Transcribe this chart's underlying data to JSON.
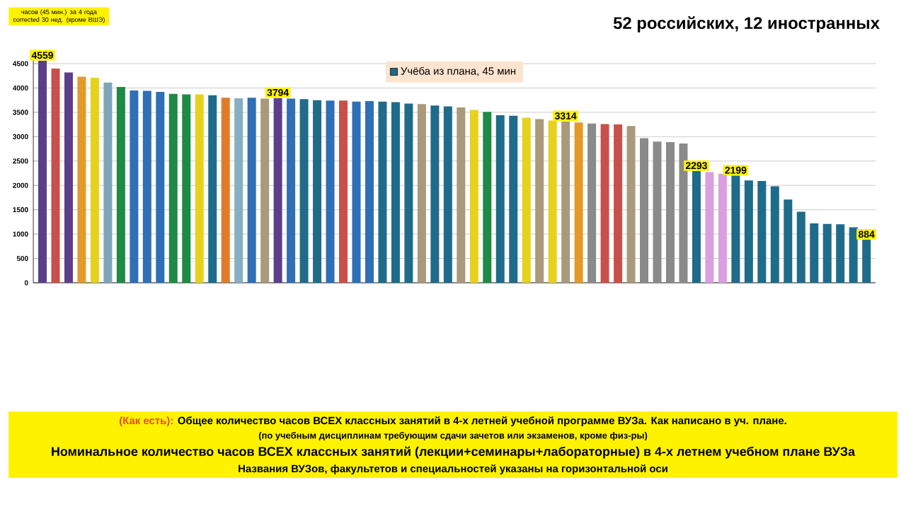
{
  "chart_data": {
    "type": "bar",
    "title": "52 российских, 12 иностранных",
    "categories": [
      null,
      null,
      null,
      null,
      null,
      null,
      null,
      null,
      null,
      null,
      null,
      null,
      null,
      null,
      null,
      null,
      null,
      null,
      null,
      null,
      null,
      null,
      null,
      null,
      null,
      null,
      null,
      null,
      null,
      null,
      null,
      null,
      null,
      null,
      null,
      null,
      null,
      null,
      null,
      null,
      null,
      null,
      null,
      null,
      null,
      null,
      null,
      null,
      null,
      null,
      null,
      null,
      null,
      null,
      null,
      null,
      null,
      null,
      null,
      null,
      null,
      null,
      null,
      null
    ],
    "series": [
      {
        "name": "Учёба из плана, 45 мин",
        "color": "#1f6b8a",
        "values": [
          4559,
          4400,
          4320,
          4230,
          4210,
          4110,
          4020,
          3950,
          3940,
          3920,
          3880,
          3870,
          3870,
          3850,
          3800,
          3790,
          3800,
          3780,
          3794,
          3780,
          3770,
          3750,
          3740,
          3740,
          3720,
          3730,
          3720,
          3710,
          3680,
          3670,
          3640,
          3620,
          3600,
          3550,
          3510,
          3440,
          3430,
          3390,
          3360,
          3330,
          3314,
          3290,
          3270,
          3260,
          3250,
          3220,
          2970,
          2900,
          2890,
          2860,
          2293,
          2270,
          2240,
          2199,
          2100,
          2090,
          1980,
          1710,
          1460,
          1220,
          1210,
          1200,
          1140,
          884
        ],
        "colors": [
          "#5b3f8a",
          "#c9504a",
          "#5b3f8a",
          "#e39a2a",
          "#e6d21c",
          "#7fa6b8",
          "#1e8a45",
          "#2e6fb5",
          "#2e6fb5",
          "#2e6fb5",
          "#1e8a45",
          "#1e8a45",
          "#e6d21c",
          "#1f6b8a",
          "#e07b2a",
          "#86aec4",
          "#2e6fb5",
          "#a89a7a",
          "#5b3f8a",
          "#2e6fb5",
          "#1f6b8a",
          "#1f6b8a",
          "#2e6fb5",
          "#c9504a",
          "#2e6fb5",
          "#2e6fb5",
          "#1f6b8a",
          "#1f6b8a",
          "#1f6b8a",
          "#a89a7a",
          "#1f6b8a",
          "#1f6b8a",
          "#a89a7a",
          "#e6d21c",
          "#1e8a45",
          "#1f6b8a",
          "#1f6b8a",
          "#e6d21c",
          "#a89a7a",
          "#e6d21c",
          "#a89a7a",
          "#e39a2a",
          "#8a8a8a",
          "#c9504a",
          "#c9504a",
          "#a89a7a",
          "#8a8a8a",
          "#8a8a8a",
          "#8a8a8a",
          "#8a8a8a",
          "#1f6b8a",
          "#d9a0e0",
          "#d9a0e0",
          "#1f6b8a",
          "#1f6b8a",
          "#1f6b8a",
          "#1f6b8a",
          "#1f6b8a",
          "#1f6b8a",
          "#1f6b8a",
          "#1f6b8a",
          "#1f6b8a",
          "#1f6b8a",
          "#1f6b8a"
        ],
        "value_labels": [
          "4559",
          null,
          null,
          null,
          null,
          null,
          null,
          null,
          null,
          null,
          null,
          null,
          null,
          null,
          null,
          null,
          null,
          null,
          "3794",
          null,
          null,
          null,
          null,
          null,
          null,
          null,
          null,
          null,
          null,
          null,
          null,
          null,
          null,
          null,
          null,
          null,
          null,
          null,
          null,
          null,
          "3314",
          null,
          null,
          null,
          null,
          null,
          null,
          null,
          null,
          null,
          "2293",
          null,
          null,
          "2199",
          null,
          null,
          null,
          null,
          null,
          null,
          null,
          null,
          null,
          "884"
        ]
      }
    ],
    "ylim": [
      0,
      4600
    ],
    "yticks": [
      0,
      500,
      1000,
      1500,
      2000,
      2500,
      3000,
      3500,
      4000,
      4500
    ],
    "grid": "y",
    "legend": "top",
    "annotations": [
      "часов (45 мин.) за 4 года corrected 30 нед. (кроме ВШЭ)",
      "(Как есть):",
      "Общее количество часов ВСЕХ классных занятий в 4-х летней учебной программе ВУЗа. Как написано в уч. плане.",
      "(по учебным дисциплинам требующим сдачи зачетов или экзаменов, кроме физ-ры)",
      "Номинальное количество часов ВСЕХ классных занятий (лекции+семинары+лабораторные) в 4-х летнем учебном плане ВУЗа",
      "Названия ВУЗов, факультетов и специальностей указаны на горизонтальной оси"
    ]
  }
}
